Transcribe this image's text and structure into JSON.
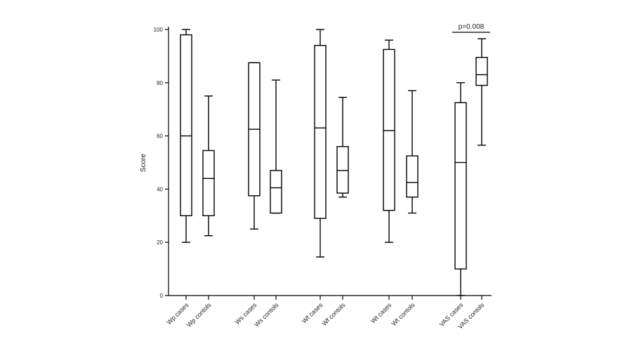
{
  "chart_data": {
    "type": "box",
    "title": "",
    "xlabel": "",
    "ylabel": "Score",
    "ylim": [
      0,
      100
    ],
    "yticks": [
      0,
      20,
      40,
      60,
      80,
      100
    ],
    "grid": false,
    "categories": [
      "Wp cases",
      "Wp contols",
      "Ws cases",
      "Ws contols",
      "Wf cases",
      "Wf contols",
      "Wt cases",
      "Wt contols",
      "VAS cases",
      "VAS contols"
    ],
    "boxes": [
      {
        "min": 20,
        "q1": 30,
        "median": 60,
        "q3": 98,
        "max": 100
      },
      {
        "min": 22.5,
        "q1": 30,
        "median": 44,
        "q3": 54.5,
        "max": 75
      },
      {
        "min": 25,
        "q1": 37.5,
        "median": 62.5,
        "q3": 87.5,
        "max": 87.5
      },
      {
        "min": 31,
        "q1": 31,
        "median": 40.5,
        "q3": 47,
        "max": 81
      },
      {
        "min": 14.5,
        "q1": 29,
        "median": 63,
        "q3": 94,
        "max": 100
      },
      {
        "min": 37,
        "q1": 38.5,
        "median": 47,
        "q3": 56,
        "max": 74.5
      },
      {
        "min": 20,
        "q1": 32,
        "median": 62,
        "q3": 92.5,
        "max": 96
      },
      {
        "min": 31,
        "q1": 37,
        "median": 42.5,
        "q3": 52.5,
        "max": 77
      },
      {
        "min": 0,
        "q1": 10,
        "median": 50,
        "q3": 72.5,
        "max": 80
      },
      {
        "min": 56.5,
        "q1": 79,
        "median": 83,
        "q3": 89.5,
        "max": 96.5
      }
    ],
    "annotations": [
      {
        "text": "p=0.008",
        "between": [
          8,
          9
        ]
      }
    ]
  }
}
